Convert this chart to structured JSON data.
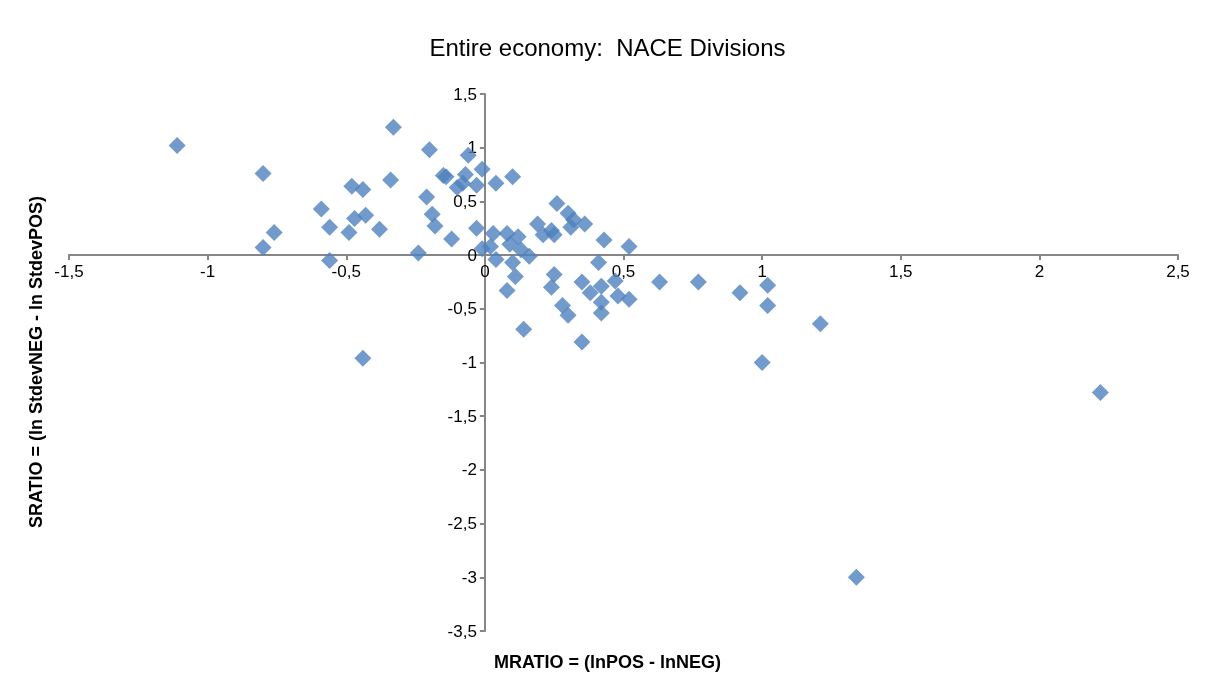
{
  "chart_data": {
    "type": "scatter",
    "title": "Entire economy:  NACE Divisions",
    "xlabel": "MRATIO = (lnPOS - lnNEG)",
    "ylabel": "SRATIO = (ln StdevNEG - ln StdevPOS)",
    "xlim": [
      -1.5,
      2.5
    ],
    "ylim": [
      -3.5,
      1.5
    ],
    "xticks": [
      {
        "value": -1.5,
        "label": "-1,5"
      },
      -1,
      {
        "value": -0.5,
        "label": "-0,5"
      },
      0,
      {
        "value": 0.5,
        "label": "0,5"
      },
      1,
      {
        "value": 1.5,
        "label": "1,5"
      },
      2,
      {
        "value": 2.5,
        "label": "2,5"
      }
    ],
    "yticks": [
      {
        "value": -3.5,
        "label": "-3,5"
      },
      -3,
      {
        "value": -2.5,
        "label": "-2,5"
      },
      -2,
      {
        "value": -1.5,
        "label": "-1,5"
      },
      -1,
      {
        "value": -0.5,
        "label": "-0,5"
      },
      0,
      {
        "value": 0.5,
        "label": "0,5"
      },
      1,
      {
        "value": 1.5,
        "label": "1,5"
      }
    ],
    "grid": false,
    "marker": "diamond",
    "series": [
      {
        "color": "#4f81bd",
        "x": [
          -1.11,
          -0.8,
          -0.8,
          -0.76,
          -0.59,
          -0.56,
          -0.56,
          -0.48,
          -0.44,
          -0.47,
          -0.43,
          -0.49,
          -0.38,
          -0.33,
          -0.34,
          -0.44,
          -0.2,
          -0.15,
          -0.21,
          -0.19,
          -0.18,
          -0.24,
          -0.12,
          -0.06,
          -0.14,
          -0.07,
          -0.01,
          -0.08,
          -0.03,
          -0.1,
          0.04,
          0.1,
          -0.03,
          -0.01,
          0.03,
          0.02,
          0.04,
          0.08,
          0.12,
          0.09,
          0.13,
          0.16,
          0.1,
          0.11,
          0.08,
          0.14,
          0.19,
          0.21,
          0.24,
          0.25,
          0.26,
          0.3,
          0.32,
          0.31,
          0.36,
          0.43,
          0.52,
          0.41,
          0.25,
          0.24,
          0.28,
          0.3,
          0.35,
          0.38,
          0.42,
          0.42,
          0.42,
          0.35,
          0.47,
          0.48,
          0.52,
          0.63,
          0.77,
          0.92,
          1.02,
          1.02,
          1.0,
          1.21,
          2.22,
          1.34
        ],
        "values": [
          1.02,
          0.76,
          0.07,
          0.21,
          0.43,
          0.26,
          -0.05,
          0.64,
          0.61,
          0.34,
          0.37,
          0.21,
          0.24,
          1.19,
          0.7,
          -0.96,
          0.98,
          0.74,
          0.54,
          0.38,
          0.27,
          0.02,
          0.15,
          0.93,
          0.73,
          0.75,
          0.8,
          0.67,
          0.65,
          0.63,
          0.67,
          0.73,
          0.25,
          0.06,
          0.2,
          0.08,
          -0.04,
          0.2,
          0.17,
          0.1,
          0.05,
          -0.01,
          -0.07,
          -0.2,
          -0.33,
          -0.69,
          0.29,
          0.19,
          0.23,
          0.19,
          0.48,
          0.39,
          0.33,
          0.26,
          0.29,
          0.14,
          0.08,
          -0.07,
          -0.18,
          -0.3,
          -0.47,
          -0.56,
          -0.25,
          -0.35,
          -0.29,
          -0.44,
          -0.54,
          -0.81,
          -0.24,
          -0.38,
          -0.41,
          -0.25,
          -0.25,
          -0.35,
          -0.28,
          -0.47,
          -1.0,
          -0.64,
          -1.28,
          -3.0
        ]
      }
    ]
  }
}
